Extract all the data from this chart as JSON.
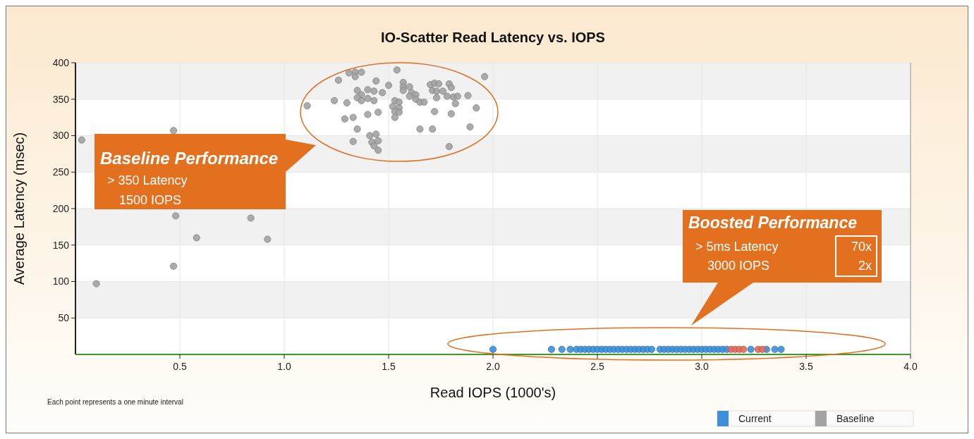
{
  "chart_data": {
    "type": "scatter",
    "title": "IO-Scatter Read Latency vs. IOPS",
    "xlabel": "Read IOPS (1000's)",
    "ylabel": "Average Latency (msec)",
    "xlim": [
      0,
      4
    ],
    "ylim": [
      0,
      400
    ],
    "xticks": [
      0.5,
      {
        "value": 1,
        "label": "1.0"
      },
      1.5,
      {
        "value": 2,
        "label": "2.0"
      },
      2.5,
      {
        "value": 3,
        "label": "3.0"
      },
      3.5,
      {
        "value": 4,
        "label": "4.0"
      }
    ],
    "yticks": [
      50,
      100,
      150,
      200,
      250,
      300,
      350,
      400
    ],
    "grid": true,
    "legend": "bottom right",
    "marker": "circle",
    "annotations": [
      "Baseline Performance",
      "> 350 Latency",
      "1500 IOPS",
      "Boosted Performance",
      "> 5ms Latency",
      "3000 IOPS",
      "70x",
      "2x",
      "Each point represents a one minute interval"
    ],
    "series": [
      {
        "name": "Baseline",
        "color": "#a3a3a3",
        "x": [
          0.03,
          0.1,
          0.47,
          0.48,
          0.47,
          0.58,
          0.84,
          0.92,
          1.11,
          1.24,
          1.26,
          1.3,
          1.31,
          1.34,
          1.37,
          1.34,
          1.29,
          1.33,
          1.35,
          1.33,
          1.4,
          1.45,
          1.35,
          1.37,
          1.4,
          1.43,
          1.35,
          1.37,
          1.4,
          1.43,
          1.44,
          1.47,
          1.5,
          1.54,
          1.41,
          1.44,
          1.42,
          1.45,
          1.43,
          1.45,
          1.53,
          1.55,
          1.52,
          1.55,
          1.53,
          1.55,
          1.53,
          1.57,
          1.57,
          1.6,
          1.57,
          1.61,
          1.6,
          1.63,
          1.63,
          1.65,
          1.67,
          1.65,
          1.71,
          1.72,
          1.8,
          1.89,
          1.79,
          1.92,
          1.88,
          1.96,
          1.7,
          1.72,
          1.74,
          1.79,
          1.71,
          1.73,
          1.76,
          1.8,
          1.78,
          1.81,
          1.83,
          1.73,
          1.82
        ],
        "values": [
          294,
          97,
          307,
          190,
          121,
          160,
          187,
          158,
          341,
          348,
          376,
          345,
          386,
          387,
          387,
          381,
          323,
          325,
          309,
          292,
          329,
          332,
          362,
          356,
          363,
          361,
          352,
          348,
          351,
          348,
          375,
          359,
          369,
          390,
          300,
          302,
          291,
          293,
          286,
          280,
          348,
          346,
          340,
          338,
          333,
          332,
          325,
          373,
          367,
          367,
          362,
          359,
          354,
          356,
          350,
          346,
          346,
          309,
          309,
          333,
          330,
          312,
          285,
          338,
          355,
          381,
          370,
          372,
          371,
          371,
          362,
          361,
          361,
          366,
          354,
          353,
          354,
          352,
          344
        ]
      },
      {
        "name": "Current",
        "color": "#3b8fdb",
        "x": [
          2.0,
          2.28,
          2.33,
          2.37,
          2.4,
          2.42,
          2.44,
          2.46,
          2.48,
          2.5,
          2.52,
          2.54,
          2.56,
          2.58,
          2.6,
          2.62,
          2.64,
          2.66,
          2.68,
          2.7,
          2.72,
          2.74,
          2.76,
          2.8,
          2.82,
          2.84,
          2.86,
          2.88,
          2.9,
          2.92,
          2.94,
          2.96,
          2.98,
          3.0,
          3.02,
          3.04,
          3.06,
          3.08,
          3.1,
          3.12,
          3.235,
          3.31,
          3.35,
          3.38
        ],
        "values": [
          7,
          7,
          7,
          7,
          7,
          7,
          7,
          7,
          7,
          7,
          7,
          7,
          7,
          7,
          7,
          7,
          7,
          7,
          7,
          7,
          7,
          7,
          7,
          7,
          7,
          7,
          7,
          7,
          7,
          7,
          7,
          7,
          7,
          7,
          7,
          7,
          7,
          7,
          7,
          7,
          7,
          7,
          7,
          7
        ]
      },
      {
        "color": "#e06a5a",
        "x": [
          3.14,
          3.16,
          3.18,
          3.2,
          3.27,
          3.29
        ],
        "values": [
          7,
          7,
          7,
          7,
          7,
          7
        ]
      }
    ]
  }
}
